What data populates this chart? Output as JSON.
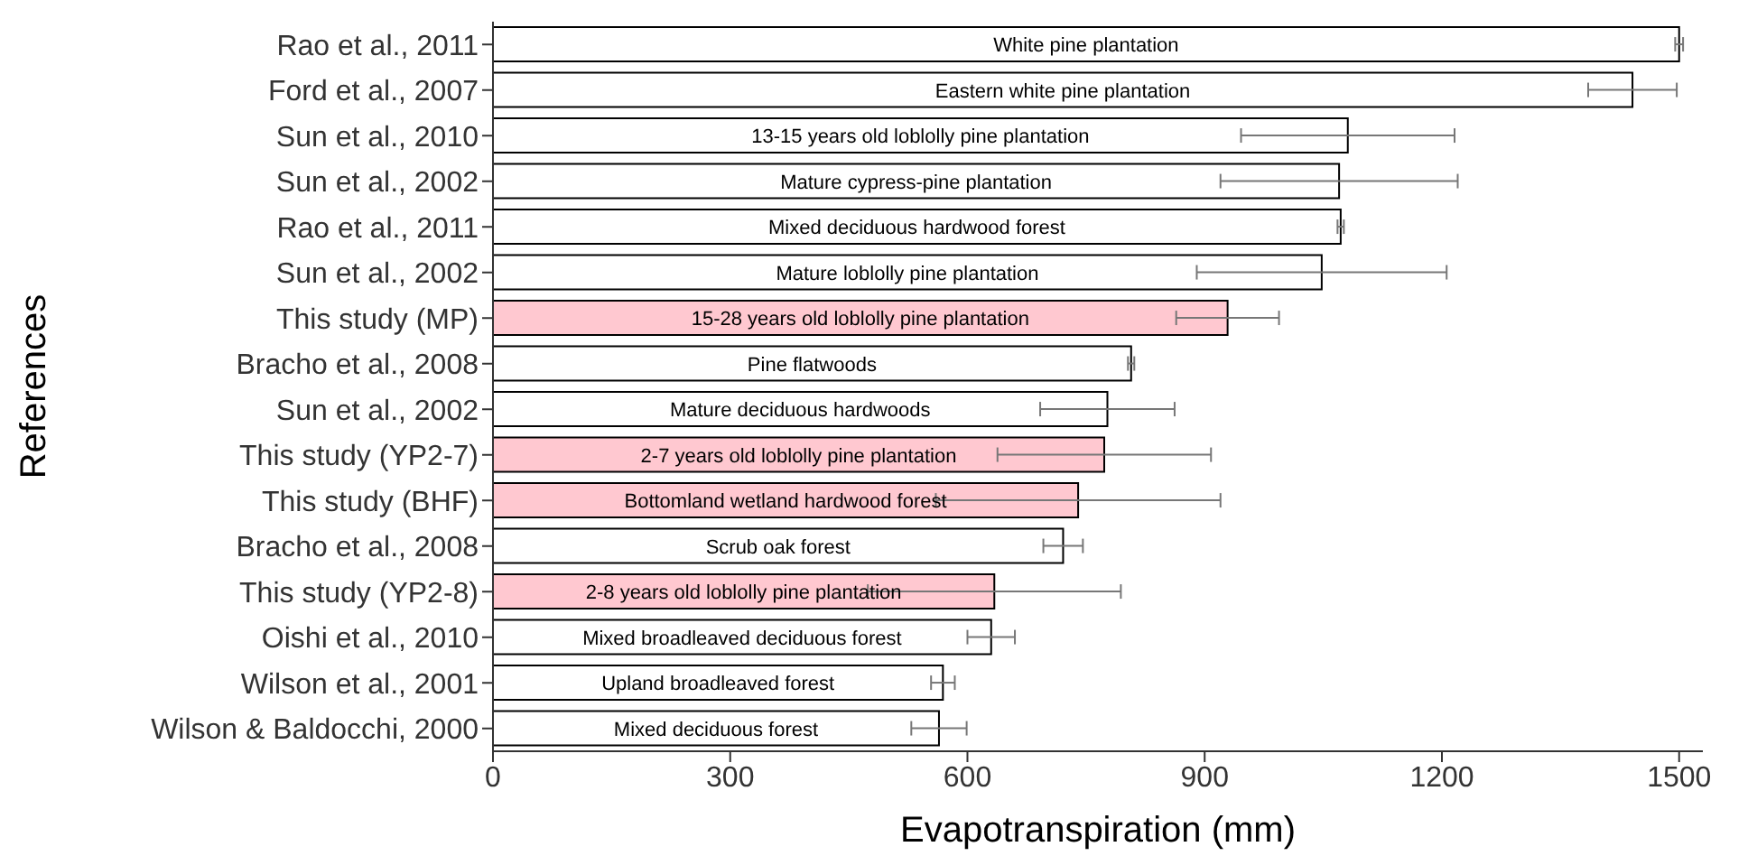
{
  "chart_data": {
    "type": "bar",
    "orientation": "horizontal",
    "xlabel": "Evapotranspiration (mm)",
    "ylabel": "References",
    "categories": [
      "Rao et al., 2011",
      "Ford et al., 2007",
      "Sun et al., 2010",
      "Sun et al., 2002",
      "Rao et al., 2011",
      "Sun et al., 2002",
      "This study (MP)",
      "Bracho et al., 2008",
      "Sun et al., 2002",
      "This study (YP2-7)",
      "This study (BHF)",
      "Bracho et al., 2008",
      "This study (YP2-8)",
      "Oishi et al., 2010",
      "Wilson et al., 2001",
      "Wilson & Baldocchi, 2000"
    ],
    "values": [
      1500,
      1441,
      1081,
      1070,
      1072,
      1048,
      929,
      807,
      777,
      773,
      740,
      721,
      634,
      630,
      569,
      564
    ],
    "errors": [
      5,
      56,
      135,
      150,
      4,
      158,
      65,
      4,
      85,
      135,
      180,
      25,
      160,
      30,
      15,
      35
    ],
    "colors": [
      "#ffffff",
      "#ffffff",
      "#ffffff",
      "#ffffff",
      "#ffffff",
      "#ffffff",
      "#ffc8d0",
      "#ffffff",
      "#ffffff",
      "#ffc8d0",
      "#ffc8d0",
      "#ffffff",
      "#ffc8d0",
      "#ffffff",
      "#ffffff",
      "#ffffff"
    ],
    "value_labels": [
      "White pine plantation",
      "Eastern white pine plantation",
      "13-15 years old loblolly pine plantation",
      "Mature cypress-pine plantation",
      "Mixed deciduous hardwood forest",
      "Mature loblolly pine plantation",
      "15-28 years old loblolly pine plantation",
      "Pine flatwoods",
      "Mature deciduous hardwoods",
      "2-7 years old loblolly pine plantation",
      "Bottomland wetland hardwood forest",
      "Scrub oak forest",
      "2-8 years old loblolly pine plantation",
      "Mixed broadleaved deciduous forest",
      "Upland broadleaved forest",
      "Mixed deciduous forest"
    ],
    "xlim": [
      0,
      1530
    ],
    "xticks": [
      0,
      300,
      600,
      900,
      1200,
      1500
    ],
    "grid": false,
    "legend": false
  }
}
